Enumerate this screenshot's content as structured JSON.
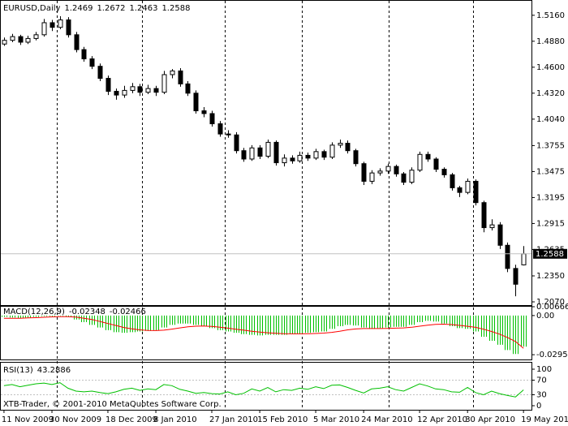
{
  "chart_data": [
    {
      "type": "candlestick",
      "title": "EURUSD,Daily",
      "candles": [
        [
          1.485,
          1.492,
          1.483,
          1.489
        ],
        [
          1.489,
          1.496,
          1.487,
          1.493
        ],
        [
          1.493,
          1.495,
          1.484,
          1.487
        ],
        [
          1.487,
          1.494,
          1.485,
          1.491
        ],
        [
          1.491,
          1.498,
          1.489,
          1.495
        ],
        [
          1.495,
          1.512,
          1.493,
          1.508
        ],
        [
          1.508,
          1.511,
          1.499,
          1.503
        ],
        [
          1.503,
          1.515,
          1.501,
          1.511
        ],
        [
          1.511,
          1.514,
          1.492,
          1.495
        ],
        [
          1.495,
          1.498,
          1.476,
          1.479
        ],
        [
          1.479,
          1.482,
          1.466,
          1.469
        ],
        [
          1.469,
          1.472,
          1.458,
          1.461
        ],
        [
          1.461,
          1.464,
          1.445,
          1.448
        ],
        [
          1.448,
          1.451,
          1.43,
          1.434
        ],
        [
          1.434,
          1.437,
          1.425,
          1.43
        ],
        [
          1.43,
          1.44,
          1.427,
          1.435
        ],
        [
          1.435,
          1.443,
          1.432,
          1.439
        ],
        [
          1.439,
          1.442,
          1.429,
          1.433
        ],
        [
          1.433,
          1.441,
          1.431,
          1.437
        ],
        [
          1.437,
          1.44,
          1.429,
          1.433
        ],
        [
          1.433,
          1.456,
          1.431,
          1.452
        ],
        [
          1.452,
          1.458,
          1.448,
          1.456
        ],
        [
          1.456,
          1.459,
          1.439,
          1.442
        ],
        [
          1.442,
          1.445,
          1.429,
          1.432
        ],
        [
          1.432,
          1.435,
          1.41,
          1.413
        ],
        [
          1.413,
          1.417,
          1.406,
          1.41
        ],
        [
          1.41,
          1.413,
          1.396,
          1.399
        ],
        [
          1.399,
          1.402,
          1.385,
          1.388
        ],
        [
          1.388,
          1.392,
          1.384,
          1.387
        ],
        [
          1.387,
          1.39,
          1.367,
          1.37
        ],
        [
          1.37,
          1.373,
          1.358,
          1.361
        ],
        [
          1.361,
          1.376,
          1.359,
          1.373
        ],
        [
          1.373,
          1.376,
          1.361,
          1.364
        ],
        [
          1.364,
          1.382,
          1.362,
          1.379
        ],
        [
          1.379,
          1.381,
          1.354,
          1.357
        ],
        [
          1.357,
          1.366,
          1.353,
          1.362
        ],
        [
          1.362,
          1.365,
          1.356,
          1.359
        ],
        [
          1.359,
          1.369,
          1.357,
          1.365
        ],
        [
          1.365,
          1.368,
          1.359,
          1.362
        ],
        [
          1.362,
          1.372,
          1.36,
          1.369
        ],
        [
          1.369,
          1.371,
          1.36,
          1.363
        ],
        [
          1.363,
          1.379,
          1.361,
          1.376
        ],
        [
          1.376,
          1.382,
          1.373,
          1.378
        ],
        [
          1.378,
          1.381,
          1.367,
          1.37
        ],
        [
          1.37,
          1.372,
          1.353,
          1.356
        ],
        [
          1.356,
          1.358,
          1.333,
          1.337
        ],
        [
          1.337,
          1.349,
          1.334,
          1.346
        ],
        [
          1.346,
          1.351,
          1.343,
          1.348
        ],
        [
          1.348,
          1.356,
          1.345,
          1.353
        ],
        [
          1.353,
          1.355,
          1.342,
          1.345
        ],
        [
          1.345,
          1.347,
          1.333,
          1.336
        ],
        [
          1.336,
          1.352,
          1.334,
          1.349
        ],
        [
          1.349,
          1.369,
          1.347,
          1.366
        ],
        [
          1.366,
          1.369,
          1.358,
          1.361
        ],
        [
          1.361,
          1.363,
          1.347,
          1.35
        ],
        [
          1.35,
          1.352,
          1.341,
          1.344
        ],
        [
          1.344,
          1.346,
          1.327,
          1.33
        ],
        [
          1.33,
          1.332,
          1.32,
          1.325
        ],
        [
          1.325,
          1.34,
          1.323,
          1.337
        ],
        [
          1.337,
          1.339,
          1.311,
          1.314
        ],
        [
          1.314,
          1.316,
          1.282,
          1.287
        ],
        [
          1.287,
          1.296,
          1.284,
          1.29
        ],
        [
          1.29,
          1.293,
          1.264,
          1.268
        ],
        [
          1.268,
          1.271,
          1.239,
          1.243
        ],
        [
          1.243,
          1.247,
          1.213,
          1.226
        ],
        [
          1.2469,
          1.2672,
          1.2463,
          1.2588
        ]
      ],
      "xlim": [
        -0.5,
        66
      ],
      "xticks": [
        {
          "value": 0,
          "label": "11 Nov 2009"
        },
        {
          "value": 6,
          "label": "30 Nov 2009"
        },
        {
          "value": 13,
          "label": "18 Dec 2009"
        },
        {
          "value": 19,
          "label": "8 Jan 2010"
        },
        {
          "value": 26,
          "label": "27 Jan 2010"
        },
        {
          "value": 32,
          "label": "15 Feb 2010"
        },
        {
          "value": 39,
          "label": "5 Mar 2010"
        },
        {
          "value": 45,
          "label": "24 Mar 2010"
        },
        {
          "value": 52,
          "label": "12 Apr 2010"
        },
        {
          "value": 58,
          "label": "30 Apr 2010"
        },
        {
          "value": 65,
          "label": "19 May 2010"
        }
      ],
      "ylim": [
        1.2035,
        1.5316
      ],
      "yticks": [
        {
          "value": 1.516,
          "label": "1.5160"
        },
        {
          "value": 1.488,
          "label": "1.4880"
        },
        {
          "value": 1.46,
          "label": "1.4600"
        },
        {
          "value": 1.432,
          "label": "1.4320"
        },
        {
          "value": 1.404,
          "label": "1.4040"
        },
        1.3755,
        1.3475,
        1.3195,
        1.2915,
        1.2635,
        {
          "value": 1.235,
          "label": "1.2350"
        },
        {
          "value": 1.207,
          "label": "1.2070"
        }
      ],
      "bull_color": "#ffffff",
      "bear_color": "#000000"
    },
    {
      "type": "macd",
      "title": "MACD(12,26,9)",
      "series": [
        {
          "color": "#00c000",
          "values": [
            -0.001,
            -0.0015,
            -0.002,
            -0.0015,
            -0.001,
            -0.0005,
            -0.0005,
            -0.0003,
            -0.001,
            -0.003,
            -0.005,
            -0.007,
            -0.009,
            -0.011,
            -0.0125,
            -0.013,
            -0.0125,
            -0.012,
            -0.0115,
            -0.011,
            -0.009,
            -0.007,
            -0.006,
            -0.006,
            -0.007,
            -0.008,
            -0.0095,
            -0.011,
            -0.012,
            -0.013,
            -0.014,
            -0.0145,
            -0.015,
            -0.0145,
            -0.0145,
            -0.0145,
            -0.014,
            -0.0135,
            -0.013,
            -0.0125,
            -0.012,
            -0.01,
            -0.008,
            -0.007,
            -0.0075,
            -0.009,
            -0.01,
            -0.0095,
            -0.009,
            -0.0085,
            -0.0085,
            -0.007,
            -0.005,
            -0.004,
            -0.0045,
            -0.006,
            -0.008,
            -0.0095,
            -0.01,
            -0.012,
            -0.016,
            -0.019,
            -0.022,
            -0.026,
            -0.029,
            -0.02348
          ]
        },
        {
          "color": "#ff0000",
          "values": [
            -0.002,
            -0.002,
            -0.002,
            -0.0018,
            -0.0016,
            -0.0013,
            -0.001,
            -0.0008,
            -0.0008,
            -0.0012,
            -0.002,
            -0.003,
            -0.0045,
            -0.006,
            -0.0075,
            -0.009,
            -0.01,
            -0.0108,
            -0.0112,
            -0.0113,
            -0.011,
            -0.0102,
            -0.0093,
            -0.0085,
            -0.008,
            -0.0079,
            -0.0082,
            -0.0088,
            -0.0095,
            -0.0103,
            -0.011,
            -0.0118,
            -0.0125,
            -0.013,
            -0.0134,
            -0.0137,
            -0.0138,
            -0.0138,
            -0.0137,
            -0.0135,
            -0.0132,
            -0.0127,
            -0.0118,
            -0.0108,
            -0.0101,
            -0.0098,
            -0.0098,
            -0.0098,
            -0.0097,
            -0.0095,
            -0.0093,
            -0.0088,
            -0.008,
            -0.0072,
            -0.0066,
            -0.0065,
            -0.0068,
            -0.0074,
            -0.0081,
            -0.0089,
            -0.0103,
            -0.012,
            -0.014,
            -0.0165,
            -0.0196,
            -0.02466
          ]
        }
      ],
      "ylim": [
        -0.0331,
        0.00666
      ],
      "yticks": [
        0.00666,
        {
          "value": 0,
          "label": "0.00"
        },
        -0.02951
      ]
    },
    {
      "type": "line",
      "title": "RSI(13)",
      "color": "#00c000",
      "values": [
        55,
        58,
        52,
        56,
        60,
        62,
        58,
        63,
        48,
        40,
        38,
        40,
        36,
        33,
        38,
        45,
        48,
        42,
        46,
        44,
        58,
        55,
        45,
        40,
        34,
        36,
        33,
        32,
        38,
        30,
        34,
        46,
        40,
        50,
        38,
        44,
        42,
        48,
        45,
        52,
        47,
        56,
        57,
        50,
        42,
        35,
        46,
        48,
        52,
        44,
        40,
        50,
        60,
        54,
        46,
        44,
        38,
        37,
        50,
        36,
        30,
        40,
        33,
        28,
        24,
        43.2886
      ],
      "ylim": [
        0,
        100
      ],
      "yticks": [
        100,
        70,
        30,
        0
      ]
    }
  ],
  "footer": "XTB-Trader, © 2001-2010 MetaQuotes Software Corp."
}
